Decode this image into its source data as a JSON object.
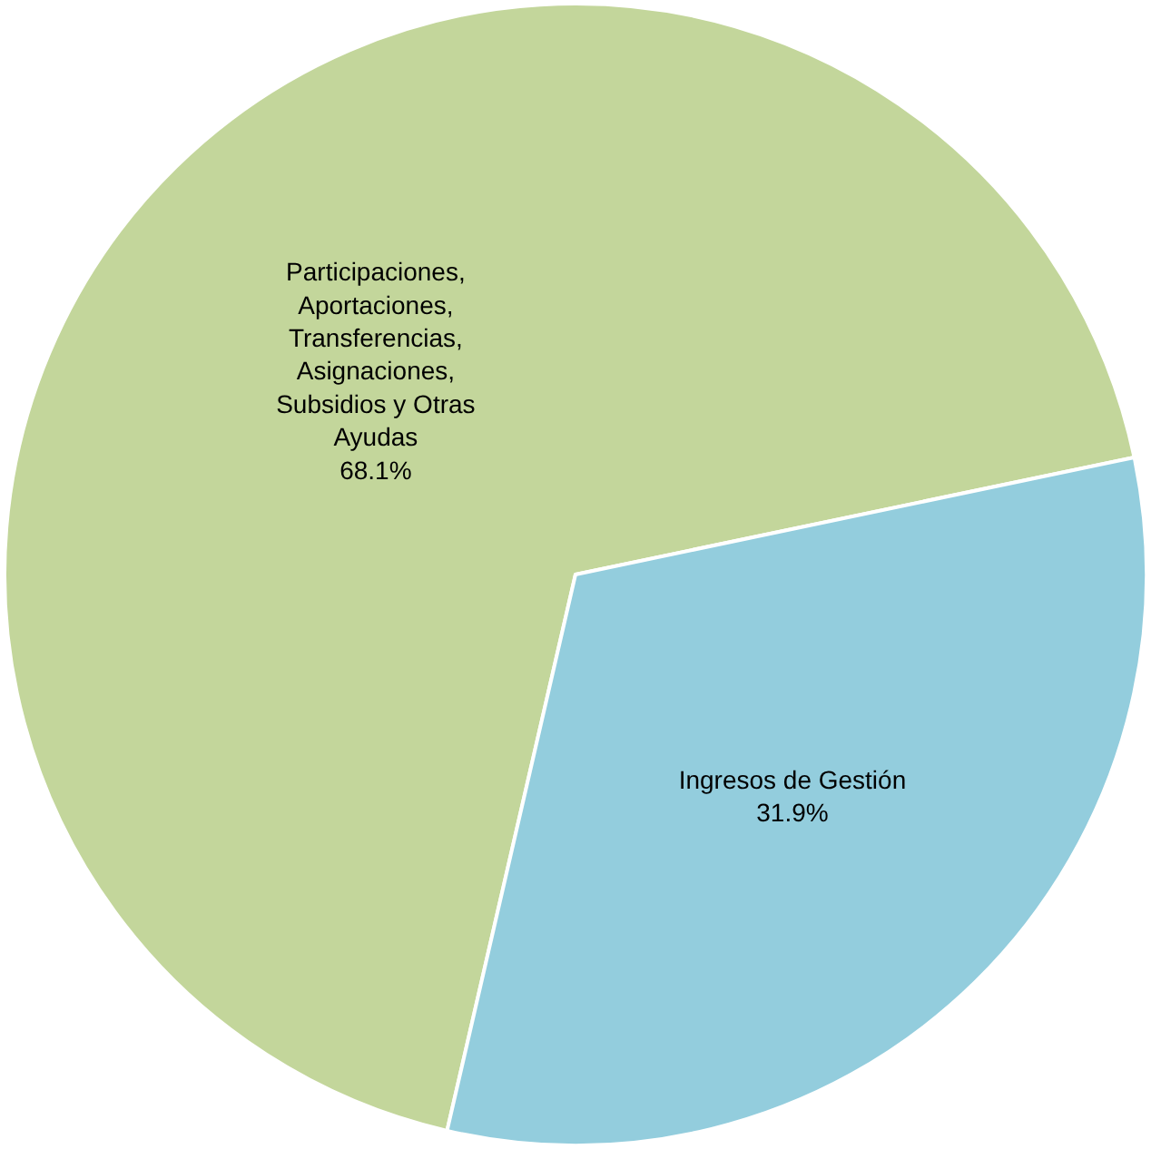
{
  "chart_data": {
    "type": "pie",
    "categories": [
      "Participaciones, Aportaciones, Transferencias, Asignaciones, Subsidios y Otras Ayudas",
      "Ingresos de Gestión"
    ],
    "values": [
      68.1,
      31.9
    ],
    "colors": [
      "#c3d69b",
      "#93cddd"
    ],
    "value_labels": [
      "68.1%",
      "31.9%"
    ],
    "legend": false
  }
}
